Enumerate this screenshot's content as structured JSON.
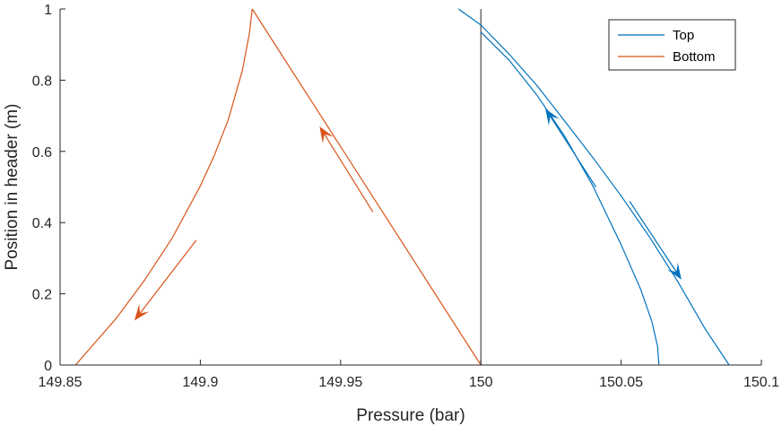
{
  "chart_data": {
    "type": "line",
    "xlabel": "Pressure (bar)",
    "ylabel": "Position in header (m)",
    "xlim": [
      149.85,
      150.1
    ],
    "ylim": [
      0,
      1
    ],
    "xticks": [
      149.85,
      149.9,
      149.95,
      150,
      150.05,
      150.1
    ],
    "xtick_labels": [
      "149.85",
      "149.9",
      "149.95",
      "150",
      "150.05",
      "150.1"
    ],
    "yticks": [
      0,
      0.2,
      0.4,
      0.6,
      0.8,
      1
    ],
    "ytick_labels": [
      "0",
      "0.2",
      "0.4",
      "0.6",
      "0.8",
      "1"
    ],
    "grid": false,
    "legend_position": "top-right",
    "reference_line": {
      "x": 150.0,
      "y": [
        0,
        1
      ],
      "color": "#262626"
    },
    "series": [
      {
        "name": "Top",
        "color": "#0072BD",
        "paths": [
          {
            "x": [
              149.992,
              150.0,
              150.01,
              150.02,
              150.03,
              150.04,
              150.05,
              150.06,
              150.07,
              150.08,
              150.0885
            ],
            "y": [
              1.0,
              0.955,
              0.874,
              0.785,
              0.684,
              0.582,
              0.475,
              0.361,
              0.237,
              0.101,
              0.0
            ]
          },
          {
            "x": [
              150.0,
              150.01,
              150.02,
              150.03,
              150.04,
              150.05,
              150.057,
              150.061,
              150.063,
              150.0635
            ],
            "y": [
              0.935,
              0.857,
              0.758,
              0.641,
              0.502,
              0.338,
              0.212,
              0.121,
              0.052,
              0.0
            ]
          }
        ],
        "arrows": [
          {
            "from": [
              150.041,
              0.5
            ],
            "to": [
              150.023,
              0.72
            ]
          },
          {
            "from": [
              150.053,
              0.46
            ],
            "to": [
              150.0715,
              0.24
            ]
          }
        ]
      },
      {
        "name": "Bottom",
        "color": "#D95319",
        "paths": [
          {
            "x": [
              149.8555,
              149.87,
              149.88,
              149.89,
              149.9,
              149.905,
              149.91,
              149.915,
              149.9175,
              149.9185
            ],
            "y": [
              0.0,
              0.131,
              0.237,
              0.357,
              0.503,
              0.589,
              0.69,
              0.828,
              0.932,
              1.0
            ]
          },
          {
            "x": [
              149.9185,
              150.0
            ],
            "y": [
              1.0,
              0.0
            ]
          }
        ],
        "arrows": [
          {
            "from": [
              149.9615,
              0.43
            ],
            "to": [
              149.9425,
              0.67
            ]
          },
          {
            "from": [
              149.8985,
              0.35
            ],
            "to": [
              149.8765,
              0.125
            ]
          }
        ]
      }
    ]
  }
}
